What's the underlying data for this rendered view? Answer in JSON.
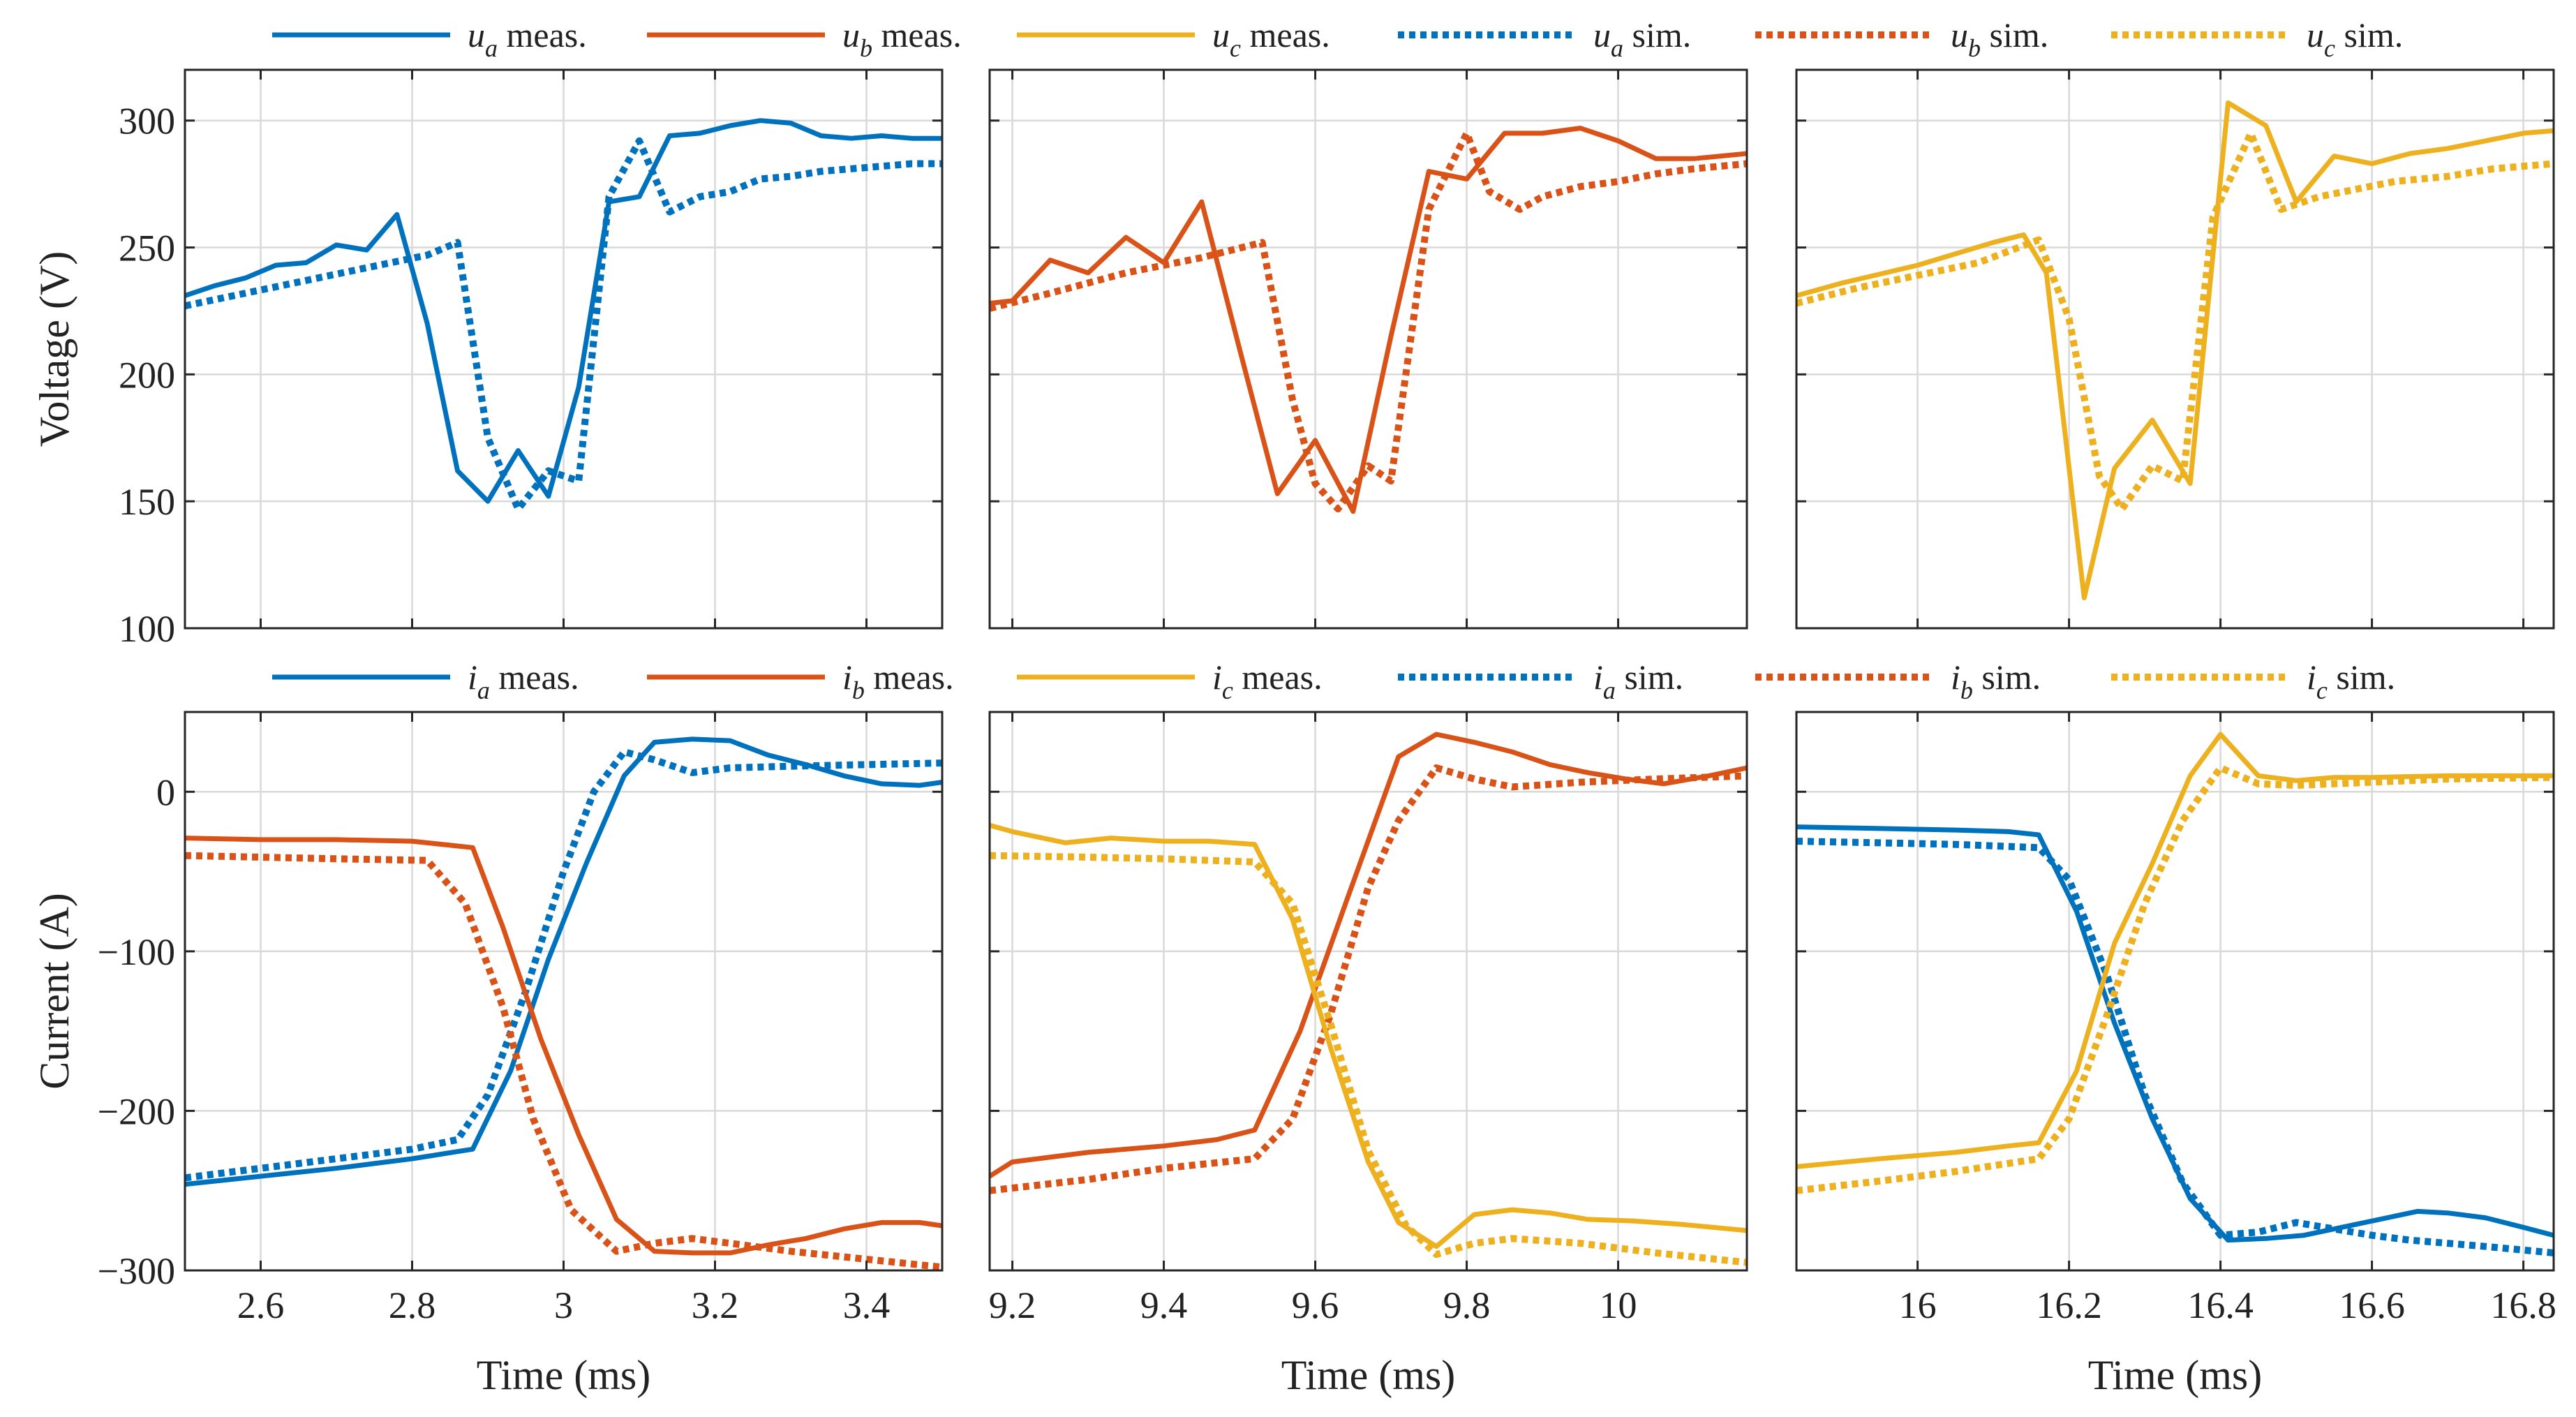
{
  "colors": {
    "a": "#0072BD",
    "b": "#D95319",
    "c": "#EDB120"
  },
  "legends": [
    {
      "row": 0,
      "items": [
        {
          "phase": "a",
          "style": "meas",
          "symbol": "u",
          "sub": "a",
          "text": " meas."
        },
        {
          "phase": "b",
          "style": "meas",
          "symbol": "u",
          "sub": "b",
          "text": " meas."
        },
        {
          "phase": "c",
          "style": "meas",
          "symbol": "u",
          "sub": "c",
          "text": " meas."
        },
        {
          "phase": "a",
          "style": "sim",
          "symbol": "u",
          "sub": "a",
          "text": " sim."
        },
        {
          "phase": "b",
          "style": "sim",
          "symbol": "u",
          "sub": "b",
          "text": " sim."
        },
        {
          "phase": "c",
          "style": "sim",
          "symbol": "u",
          "sub": "c",
          "text": " sim."
        }
      ]
    },
    {
      "row": 1,
      "items": [
        {
          "phase": "a",
          "style": "meas",
          "symbol": "i",
          "sub": "a",
          "text": " meas."
        },
        {
          "phase": "b",
          "style": "meas",
          "symbol": "i",
          "sub": "b",
          "text": " meas."
        },
        {
          "phase": "c",
          "style": "meas",
          "symbol": "i",
          "sub": "c",
          "text": " meas."
        },
        {
          "phase": "a",
          "style": "sim",
          "symbol": "i",
          "sub": "a",
          "text": " sim."
        },
        {
          "phase": "b",
          "style": "sim",
          "symbol": "i",
          "sub": "b",
          "text": " sim."
        },
        {
          "phase": "c",
          "style": "sim",
          "symbol": "i",
          "sub": "c",
          "text": " sim."
        }
      ]
    }
  ],
  "chart_data": [
    {
      "type": "line",
      "row": 0,
      "col": 0,
      "title": "",
      "xlabel": "",
      "ylabel": "Voltage (V)",
      "xlim": [
        2.5,
        3.5
      ],
      "ylim": [
        100,
        320
      ],
      "xticks": [
        2.6,
        2.8,
        3.0,
        3.2,
        3.4
      ],
      "xtick_labels": [],
      "yticks": [
        100,
        150,
        200,
        250,
        300
      ],
      "ytick_labels": [
        "100",
        "150",
        "200",
        "250",
        "300"
      ],
      "grid": true,
      "series": [
        {
          "name": "u_a meas.",
          "phase": "a",
          "style": "meas",
          "x": [
            2.5,
            2.54,
            2.58,
            2.62,
            2.66,
            2.7,
            2.74,
            2.78,
            2.82,
            2.86,
            2.9,
            2.94,
            2.98,
            3.02,
            3.06,
            3.1,
            3.14,
            3.18,
            3.22,
            3.26,
            3.3,
            3.34,
            3.38,
            3.42,
            3.46,
            3.5
          ],
          "y": [
            231,
            235,
            238,
            243,
            244,
            251,
            249,
            263,
            220,
            162,
            150,
            170,
            152,
            195,
            268,
            270,
            294,
            295,
            298,
            300,
            299,
            294,
            293,
            294,
            293,
            293
          ]
        },
        {
          "name": "u_a sim.",
          "phase": "a",
          "style": "sim",
          "x": [
            2.5,
            2.58,
            2.66,
            2.74,
            2.82,
            2.86,
            2.9,
            2.94,
            2.98,
            3.02,
            3.06,
            3.1,
            3.14,
            3.18,
            3.22,
            3.26,
            3.3,
            3.34,
            3.38,
            3.42,
            3.46,
            3.5
          ],
          "y": [
            227,
            232,
            237,
            242,
            247,
            252,
            175,
            147,
            162,
            158,
            270,
            292,
            264,
            270,
            272,
            277,
            278,
            280,
            281,
            282,
            283,
            283
          ]
        },
        {
          "name": "u_b meas.",
          "phase": "b",
          "style": "meas",
          "x": [
            9.17,
            9.2,
            9.25,
            9.3,
            9.35,
            9.4,
            9.45,
            9.5,
            9.55,
            9.6,
            9.65,
            9.7,
            9.75,
            9.8,
            9.85,
            9.9,
            9.95,
            10.0,
            10.05,
            10.1,
            10.17
          ],
          "y": [
            228,
            229,
            245,
            240,
            254,
            244,
            268,
            210,
            153,
            174,
            146,
            215,
            280,
            277,
            295,
            295,
            297,
            292,
            285,
            285,
            287
          ]
        },
        {
          "name": "u_b sim.",
          "phase": "b",
          "style": "sim",
          "x": [
            9.17,
            9.25,
            9.35,
            9.45,
            9.53,
            9.57,
            9.6,
            9.63,
            9.67,
            9.7,
            9.75,
            9.8,
            9.83,
            9.87,
            9.9,
            9.95,
            10.0,
            10.05,
            10.1,
            10.17
          ],
          "y": [
            226,
            232,
            240,
            246,
            252,
            190,
            157,
            147,
            164,
            158,
            265,
            295,
            272,
            265,
            270,
            274,
            276,
            279,
            281,
            283
          ]
        },
        {
          "name": "u_c meas.",
          "phase": "c",
          "style": "meas",
          "x": [
            15.84,
            15.9,
            16.0,
            16.1,
            16.14,
            16.17,
            16.22,
            16.26,
            16.31,
            16.36,
            16.41,
            16.46,
            16.5,
            16.55,
            16.6,
            16.65,
            16.7,
            16.75,
            16.8,
            16.84
          ],
          "y": [
            231,
            236,
            243,
            252,
            255,
            240,
            112,
            163,
            182,
            157,
            307,
            298,
            268,
            286,
            283,
            287,
            289,
            292,
            295,
            296
          ]
        },
        {
          "name": "u_c sim.",
          "phase": "c",
          "style": "sim",
          "x": [
            15.84,
            15.92,
            16.0,
            16.08,
            16.16,
            16.2,
            16.24,
            16.27,
            16.31,
            16.35,
            16.39,
            16.44,
            16.48,
            16.53,
            16.58,
            16.63,
            16.7,
            16.76,
            16.84
          ],
          "y": [
            228,
            234,
            239,
            244,
            253,
            222,
            160,
            147,
            164,
            158,
            262,
            295,
            265,
            270,
            273,
            276,
            278,
            281,
            283
          ]
        }
      ]
    },
    {
      "type": "line",
      "row": 0,
      "col": 1,
      "title": "",
      "xlabel": "",
      "ylabel": "",
      "xlim": [
        9.17,
        10.17
      ],
      "ylim": [
        100,
        320
      ],
      "xticks": [
        9.2,
        9.4,
        9.6,
        9.8,
        10.0
      ],
      "xtick_labels": [],
      "yticks": [
        100,
        150,
        200,
        250,
        300
      ],
      "ytick_labels": [],
      "grid": true,
      "series_ref": [
        "u_b meas.",
        "u_b sim."
      ]
    },
    {
      "type": "line",
      "row": 0,
      "col": 2,
      "title": "",
      "xlabel": "",
      "ylabel": "",
      "xlim": [
        15.84,
        16.84
      ],
      "ylim": [
        100,
        320
      ],
      "xticks": [
        16.0,
        16.2,
        16.4,
        16.6,
        16.8
      ],
      "xtick_labels": [],
      "yticks": [
        100,
        150,
        200,
        250,
        300
      ],
      "ytick_labels": [],
      "grid": true,
      "series_ref": [
        "u_c meas.",
        "u_c sim."
      ]
    },
    {
      "type": "line",
      "row": 1,
      "col": 0,
      "title": "",
      "xlabel": "Time (ms)",
      "ylabel": "Current (A)",
      "xlim": [
        2.5,
        3.5
      ],
      "ylim": [
        -300,
        50
      ],
      "xticks": [
        2.6,
        2.8,
        3.0,
        3.2,
        3.4
      ],
      "xtick_labels": [
        "2.6",
        "2.8",
        "3",
        "3.2",
        "3.4"
      ],
      "yticks": [
        -300,
        -200,
        -100,
        0
      ],
      "ytick_labels": [
        "−300",
        "−200",
        "−100",
        "0"
      ],
      "grid": true,
      "series": [
        {
          "name": "i_a meas.",
          "phase": "a",
          "style": "meas",
          "x": [
            2.5,
            2.6,
            2.7,
            2.8,
            2.88,
            2.93,
            2.98,
            3.03,
            3.08,
            3.12,
            3.17,
            3.22,
            3.27,
            3.32,
            3.37,
            3.42,
            3.47,
            3.5
          ],
          "y": [
            -246,
            -241,
            -236,
            -230,
            -224,
            -175,
            -105,
            -45,
            10,
            31,
            33,
            32,
            23,
            17,
            10,
            5,
            4,
            6
          ]
        },
        {
          "name": "i_a sim.",
          "phase": "a",
          "style": "sim",
          "x": [
            2.5,
            2.6,
            2.7,
            2.8,
            2.86,
            2.9,
            2.95,
            3.0,
            3.04,
            3.08,
            3.12,
            3.17,
            3.22,
            3.3,
            3.4,
            3.5
          ],
          "y": [
            -242,
            -236,
            -230,
            -224,
            -218,
            -190,
            -125,
            -50,
            0,
            25,
            20,
            12,
            15,
            16,
            17,
            18
          ]
        },
        {
          "name": "i_b meas.",
          "phase": "b",
          "style": "meas",
          "x": [
            2.5,
            2.6,
            2.7,
            2.8,
            2.88,
            2.92,
            2.97,
            3.02,
            3.07,
            3.12,
            3.17,
            3.22,
            3.27,
            3.32,
            3.37,
            3.42,
            3.47,
            3.5
          ],
          "y": [
            -29,
            -30,
            -30,
            -31,
            -35,
            -85,
            -155,
            -215,
            -268,
            -288,
            -289,
            -289,
            -284,
            -280,
            -274,
            -270,
            -270,
            -272
          ]
        },
        {
          "name": "i_b sim.",
          "phase": "b",
          "style": "sim",
          "x": [
            2.5,
            2.6,
            2.7,
            2.82,
            2.87,
            2.92,
            2.96,
            3.01,
            3.07,
            3.12,
            3.17,
            3.22,
            3.3,
            3.4,
            3.5
          ],
          "y": [
            -40,
            -41,
            -42,
            -43,
            -70,
            -135,
            -205,
            -262,
            -288,
            -283,
            -280,
            -283,
            -288,
            -293,
            -298
          ]
        }
      ]
    },
    {
      "type": "line",
      "row": 1,
      "col": 1,
      "title": "",
      "xlabel": "Time (ms)",
      "ylabel": "",
      "xlim": [
        9.17,
        10.17
      ],
      "ylim": [
        -300,
        50
      ],
      "xticks": [
        9.2,
        9.4,
        9.6,
        9.8,
        10.0
      ],
      "xtick_labels": [
        "9.2",
        "9.4",
        "9.6",
        "9.8",
        "10"
      ],
      "yticks": [
        -300,
        -200,
        -100,
        0
      ],
      "ytick_labels": [],
      "grid": true,
      "series": [
        {
          "name": "i_b meas.",
          "phase": "b",
          "style": "meas",
          "x": [
            9.17,
            9.2,
            9.3,
            9.4,
            9.47,
            9.52,
            9.58,
            9.64,
            9.71,
            9.76,
            9.81,
            9.86,
            9.91,
            9.96,
            10.01,
            10.06,
            10.12,
            10.17
          ],
          "y": [
            -241,
            -232,
            -226,
            -222,
            -218,
            -212,
            -150,
            -70,
            22,
            36,
            31,
            25,
            17,
            12,
            8,
            5,
            10,
            15
          ]
        },
        {
          "name": "i_b sim.",
          "phase": "b",
          "style": "sim",
          "x": [
            9.17,
            9.3,
            9.4,
            9.52,
            9.57,
            9.62,
            9.67,
            9.71,
            9.76,
            9.81,
            9.86,
            9.95,
            10.05,
            10.17
          ],
          "y": [
            -250,
            -243,
            -236,
            -230,
            -205,
            -140,
            -60,
            -18,
            15,
            8,
            3,
            6,
            8,
            10
          ]
        },
        {
          "name": "i_c meas.",
          "phase": "c",
          "style": "meas",
          "x": [
            9.17,
            9.2,
            9.27,
            9.33,
            9.4,
            9.46,
            9.52,
            9.57,
            9.62,
            9.67,
            9.71,
            9.76,
            9.81,
            9.86,
            9.91,
            9.96,
            10.02,
            10.08,
            10.17
          ],
          "y": [
            -21,
            -25,
            -32,
            -29,
            -31,
            -31,
            -33,
            -80,
            -160,
            -232,
            -270,
            -285,
            -265,
            -262,
            -264,
            -268,
            -269,
            -271,
            -275
          ]
        },
        {
          "name": "i_c sim.",
          "phase": "c",
          "style": "sim",
          "x": [
            9.17,
            9.3,
            9.4,
            9.52,
            9.57,
            9.62,
            9.67,
            9.72,
            9.76,
            9.81,
            9.86,
            9.95,
            10.05,
            10.17
          ],
          "y": [
            -40,
            -41,
            -42,
            -44,
            -70,
            -145,
            -225,
            -272,
            -290,
            -283,
            -280,
            -283,
            -289,
            -295
          ]
        }
      ]
    },
    {
      "type": "line",
      "row": 1,
      "col": 2,
      "title": "",
      "xlabel": "Time (ms)",
      "ylabel": "",
      "xlim": [
        15.84,
        16.84
      ],
      "ylim": [
        -300,
        50
      ],
      "xticks": [
        16.0,
        16.2,
        16.4,
        16.6,
        16.8
      ],
      "xtick_labels": [
        "16",
        "16.2",
        "16.4",
        "16.6",
        "16.8"
      ],
      "yticks": [
        -300,
        -200,
        -100,
        0
      ],
      "ytick_labels": [],
      "grid": true,
      "series": [
        {
          "name": "i_a meas.",
          "phase": "a",
          "style": "meas",
          "x": [
            15.84,
            15.95,
            16.05,
            16.12,
            16.16,
            16.21,
            16.26,
            16.31,
            16.36,
            16.41,
            16.46,
            16.51,
            16.56,
            16.61,
            16.66,
            16.7,
            16.75,
            16.8,
            16.84
          ],
          "y": [
            -22,
            -23,
            -24,
            -25,
            -27,
            -75,
            -145,
            -205,
            -255,
            -281,
            -280,
            -278,
            -273,
            -268,
            -263,
            -264,
            -267,
            -273,
            -278
          ]
        },
        {
          "name": "i_a sim.",
          "phase": "a",
          "style": "sim",
          "x": [
            15.84,
            15.95,
            16.05,
            16.16,
            16.2,
            16.25,
            16.3,
            16.35,
            16.4,
            16.45,
            16.5,
            16.55,
            16.6,
            16.65,
            16.7,
            16.75,
            16.84
          ],
          "y": [
            -31,
            -32,
            -33,
            -35,
            -55,
            -115,
            -190,
            -245,
            -278,
            -276,
            -270,
            -274,
            -278,
            -281,
            -283,
            -285,
            -289
          ]
        },
        {
          "name": "i_c meas.",
          "phase": "c",
          "style": "meas",
          "x": [
            15.84,
            15.95,
            16.05,
            16.12,
            16.16,
            16.21,
            16.26,
            16.31,
            16.36,
            16.4,
            16.45,
            16.5,
            16.55,
            16.6,
            16.7,
            16.84
          ],
          "y": [
            -235,
            -230,
            -226,
            -222,
            -220,
            -175,
            -95,
            -45,
            10,
            36,
            10,
            7,
            9,
            9,
            10,
            10
          ]
        },
        {
          "name": "i_c sim.",
          "phase": "c",
          "style": "sim",
          "x": [
            15.84,
            15.95,
            16.05,
            16.16,
            16.2,
            16.25,
            16.3,
            16.35,
            16.4,
            16.45,
            16.5,
            16.6,
            16.7,
            16.84
          ],
          "y": [
            -250,
            -244,
            -238,
            -230,
            -205,
            -140,
            -70,
            -18,
            15,
            5,
            4,
            6,
            8,
            9
          ]
        }
      ]
    }
  ]
}
